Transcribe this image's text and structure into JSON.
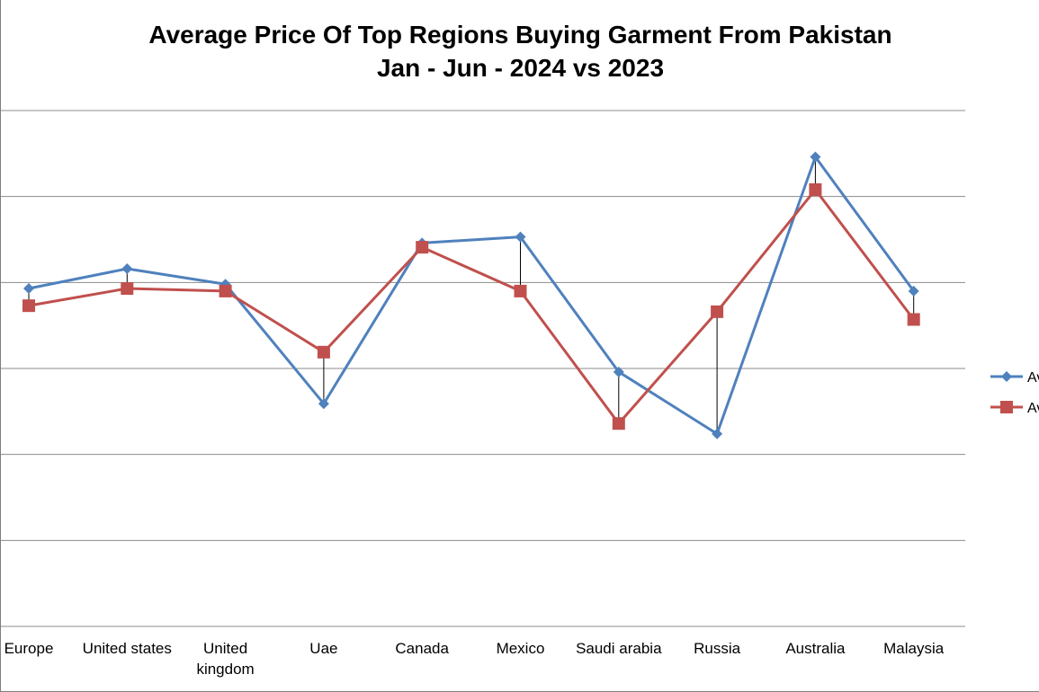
{
  "chart_data": {
    "type": "line",
    "title": "Average Price Of Top Regions Buying Garment From Pakistan",
    "subtitle": "Jan - Jun - 2024 vs 2023",
    "categories": [
      "Europe",
      "United states",
      "United kingdom",
      "Uae",
      "Canada",
      "Mexico",
      "Saudi arabia",
      "Russia",
      "Australia",
      "Malaysia"
    ],
    "category_lines": [
      [
        "Europe"
      ],
      [
        "United states"
      ],
      [
        "United",
        "kingdom"
      ],
      [
        "Uae"
      ],
      [
        "Canada"
      ],
      [
        "Mexico"
      ],
      [
        "Saudi arabia"
      ],
      [
        "Russia"
      ],
      [
        "Australia"
      ],
      [
        "Malaysia"
      ]
    ],
    "ylim": [
      0,
      6
    ],
    "grid": true,
    "high_low_lines": true,
    "legend_position": "right",
    "series": [
      {
        "legend_text": "Av",
        "color": "#4f81bd",
        "marker": "diamond",
        "values": [
          3.93,
          4.16,
          3.98,
          2.59,
          4.46,
          4.53,
          2.96,
          2.24,
          5.46,
          3.9
        ]
      },
      {
        "legend_text": "Av",
        "color": "#c0504d",
        "marker": "square",
        "values": [
          3.73,
          3.93,
          3.9,
          3.19,
          4.41,
          3.9,
          2.36,
          3.66,
          5.08,
          3.57
        ]
      }
    ]
  }
}
